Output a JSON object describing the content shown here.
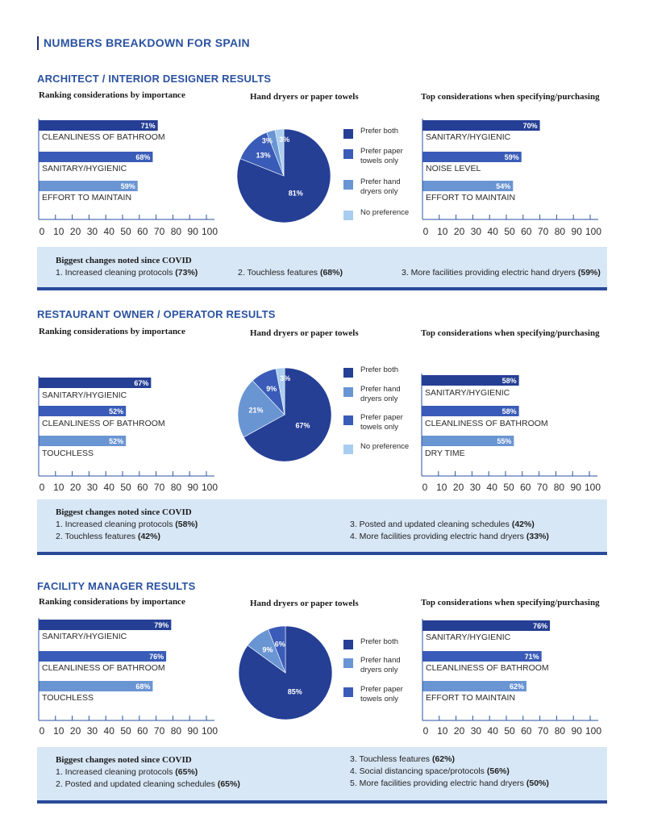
{
  "page_title": "NUMBERS BREAKDOWN FOR SPAIN",
  "subtitles": {
    "ranking": "Ranking considerations by importance",
    "pie": "Hand dryers or paper towels",
    "top": "Top considerations when specifying/purchasing"
  },
  "colors": {
    "dark": "#253f95",
    "mid": "#3a5cb8",
    "light": "#6a95d3",
    "pale": "#a9cdee",
    "panel": "#d8e7f6",
    "accent": "#2a52a0"
  },
  "changes_heading": "Biggest changes noted since COVID",
  "sections": [
    {
      "title": "ARCHITECT / INTERIOR DESIGNER RESULTS",
      "changes": [
        {
          "text": "1. Increased cleaning protocols",
          "value": "(73%)"
        },
        {
          "text": "2. Touchless features",
          "value": "(68%)"
        },
        {
          "text": "3. More facilities providing electric hand dryers",
          "value": "(59%)"
        }
      ]
    },
    {
      "title": "RESTAURANT OWNER / OPERATOR RESULTS",
      "changes": [
        {
          "text": "1. Increased cleaning protocols",
          "value": "(58%)"
        },
        {
          "text": "2. Touchless features",
          "value": "(42%)"
        },
        {
          "text": "3. Posted and updated cleaning schedules",
          "value": "(42%)"
        },
        {
          "text": "4. More facilities providing electric hand dryers",
          "value": "(33%)"
        }
      ]
    },
    {
      "title": "FACILITY MANAGER RESULTS",
      "changes": [
        {
          "text": "1. Increased cleaning protocols",
          "value": "(65%)"
        },
        {
          "text": "2. Posted and updated cleaning schedules",
          "value": "(65%)"
        },
        {
          "text": "3. Touchless features",
          "value": "(62%)"
        },
        {
          "text": "4. Social distancing space/protocols",
          "value": "(56%)"
        },
        {
          "text": "5. More facilities providing electric hand dryers",
          "value": "(50%)"
        }
      ]
    }
  ],
  "chart_data": [
    {
      "id": "s1-rank",
      "type": "bar",
      "orientation": "horizontal",
      "xlim": [
        0,
        100
      ],
      "ticks": [
        "0",
        "10",
        "20",
        "30",
        "40",
        "50",
        "60",
        "70",
        "80",
        "90",
        "100"
      ],
      "categories": [
        "CLEANLINESS OF BATHROOM",
        "SANITARY/HYGIENIC",
        "EFFORT TO MAINTAIN"
      ],
      "values": [
        71,
        68,
        59
      ],
      "labels": [
        "71%",
        "68%",
        "59%"
      ]
    },
    {
      "id": "s1-pie",
      "type": "pie",
      "slices": [
        {
          "name": "Prefer both",
          "value": 81,
          "label": "81%"
        },
        {
          "name": "Prefer paper towels only",
          "value": 13,
          "label": "13%"
        },
        {
          "name": "Prefer hand dryers only",
          "value": 3,
          "label": "3%"
        },
        {
          "name": "No preference",
          "value": 3,
          "label": "3%"
        }
      ]
    },
    {
      "id": "s1-top",
      "type": "bar",
      "orientation": "horizontal",
      "xlim": [
        0,
        100
      ],
      "ticks": [
        "0",
        "10",
        "20",
        "30",
        "40",
        "50",
        "60",
        "70",
        "80",
        "90",
        "100"
      ],
      "categories": [
        "SANITARY/HYGIENIC",
        "NOISE LEVEL",
        "EFFORT TO MAINTAIN"
      ],
      "values": [
        70,
        59,
        54
      ],
      "labels": [
        "70%",
        "59%",
        "54%"
      ]
    },
    {
      "id": "s2-rank",
      "type": "bar",
      "orientation": "horizontal",
      "xlim": [
        0,
        100
      ],
      "ticks": [
        "0",
        "10",
        "20",
        "30",
        "40",
        "50",
        "60",
        "70",
        "80",
        "90",
        "100"
      ],
      "categories": [
        "SANITARY/HYGIENIC",
        "CLEANLINESS OF BATHROOM",
        "TOUCHLESS"
      ],
      "values": [
        67,
        52,
        52
      ],
      "labels": [
        "67%",
        "52%",
        "52%"
      ]
    },
    {
      "id": "s2-pie",
      "type": "pie",
      "slices": [
        {
          "name": "Prefer both",
          "value": 67,
          "label": "67%"
        },
        {
          "name": "Prefer hand dryers only",
          "value": 21,
          "label": "21%"
        },
        {
          "name": "Prefer paper towels only",
          "value": 9,
          "label": "9%"
        },
        {
          "name": "No preference",
          "value": 3,
          "label": "3%"
        }
      ]
    },
    {
      "id": "s2-top",
      "type": "bar",
      "orientation": "horizontal",
      "xlim": [
        0,
        100
      ],
      "ticks": [
        "0",
        "10",
        "20",
        "30",
        "40",
        "50",
        "60",
        "70",
        "80",
        "90",
        "100"
      ],
      "categories": [
        "SANITARY/HYGIENIC",
        "CLEANLINESS OF BATHROOM",
        "DRY TIME"
      ],
      "values": [
        58,
        58,
        55
      ],
      "labels": [
        "58%",
        "58%",
        "55%"
      ]
    },
    {
      "id": "s3-rank",
      "type": "bar",
      "orientation": "horizontal",
      "xlim": [
        0,
        100
      ],
      "ticks": [
        "0",
        "10",
        "20",
        "30",
        "40",
        "50",
        "60",
        "70",
        "80",
        "90",
        "100"
      ],
      "categories": [
        "SANITARY/HYGIENIC",
        "CLEANLINESS OF BATHROOM",
        "TOUCHLESS"
      ],
      "values": [
        79,
        76,
        68
      ],
      "labels": [
        "79%",
        "76%",
        "68%"
      ]
    },
    {
      "id": "s3-pie",
      "type": "pie",
      "slices": [
        {
          "name": "Prefer both",
          "value": 85,
          "label": "85%"
        },
        {
          "name": "Prefer hand dryers only",
          "value": 9,
          "label": "9%"
        },
        {
          "name": "Prefer paper towels only",
          "value": 6,
          "label": "6%"
        }
      ]
    },
    {
      "id": "s3-top",
      "type": "bar",
      "orientation": "horizontal",
      "xlim": [
        0,
        100
      ],
      "ticks": [
        "0",
        "10",
        "20",
        "30",
        "40",
        "50",
        "60",
        "70",
        "80",
        "90",
        "100"
      ],
      "categories": [
        "SANITARY/HYGIENIC",
        "CLEANLINESS OF BATHROOM",
        "EFFORT TO MAINTAIN"
      ],
      "values": [
        76,
        71,
        62
      ],
      "labels": [
        "76%",
        "71%",
        "62%"
      ]
    }
  ]
}
